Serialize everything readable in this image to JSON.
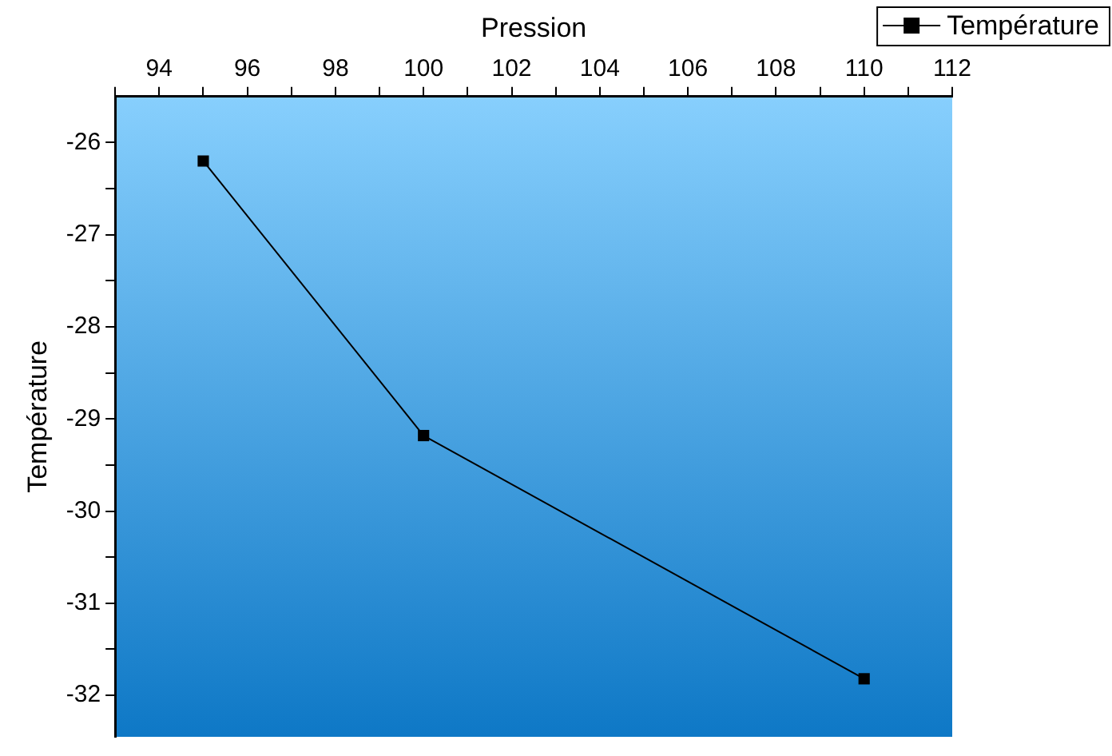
{
  "chart_data": {
    "type": "line",
    "xlabel": "Pression",
    "ylabel": "Température",
    "x": [
      95,
      100,
      110
    ],
    "series": [
      {
        "name": "Température",
        "color": "#000000",
        "values": [
          -26.2,
          -29.18,
          -31.82
        ]
      }
    ],
    "xlim": [
      93,
      112
    ],
    "xticks": [
      {
        "value": 93,
        "label": null
      },
      94,
      {
        "value": 95,
        "label": null
      },
      96,
      {
        "value": 97,
        "label": null
      },
      98,
      {
        "value": 99,
        "label": null
      },
      100,
      {
        "value": 101,
        "label": null
      },
      102,
      {
        "value": 103,
        "label": null
      },
      104,
      {
        "value": 105,
        "label": null
      },
      106,
      {
        "value": 107,
        "label": null
      },
      108,
      {
        "value": 109,
        "label": null
      },
      110,
      {
        "value": 111,
        "label": null
      },
      112
    ],
    "ylim": [
      -32.45,
      -25.5
    ],
    "yticks": [
      -32,
      {
        "value": -31.5,
        "label": null
      },
      -31,
      {
        "value": -30.5,
        "label": null
      },
      -30,
      {
        "value": -29.5,
        "label": null
      },
      -29,
      {
        "value": -28.5,
        "label": null
      },
      -28,
      {
        "value": -27.5,
        "label": null
      },
      -27,
      {
        "value": -26.5,
        "label": null
      },
      -26
    ],
    "grid": false,
    "legend": "top right",
    "marker": "square",
    "line_style": "solid"
  }
}
